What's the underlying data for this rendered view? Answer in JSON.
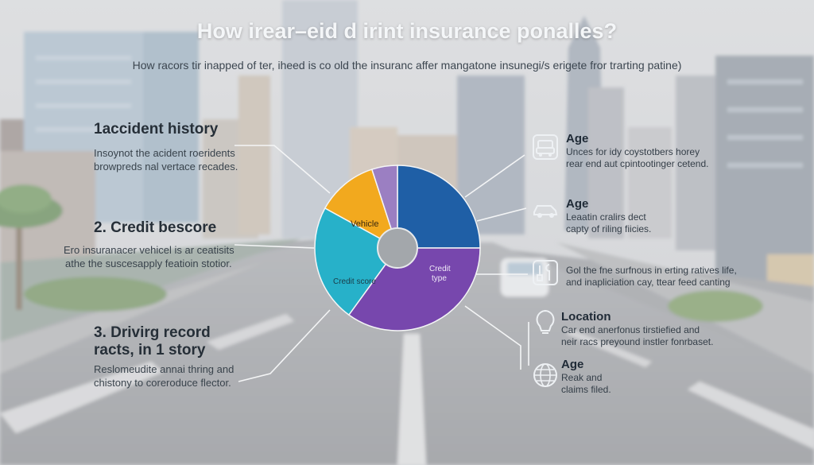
{
  "title": "How irear–eid d irint insurance ponalles?",
  "subtitle": "How racors tir inapped of ter, iheed is co old the insuranc affer mangatone insunegi/s erigete fror trarting patine)",
  "left_factors": [
    {
      "heading": "1accident history",
      "lines": [
        "Insoynot the acident roeridents",
        "browpreds nal vertace recades."
      ]
    },
    {
      "heading": "2. Credit bescore",
      "lines": [
        "Ero insuranacer vehicel is ar ceatisits",
        "athe the suscesapply featioin stotior."
      ]
    },
    {
      "heading": "3. Drivirg record\nracts, in 1 story",
      "lines": [
        "Reslomeudite annai thring and",
        "chistony to coreroduce flector."
      ]
    }
  ],
  "right_factors": [
    {
      "icon": "car-icon",
      "heading": "Age",
      "lines": [
        "Unces for idy coystotbers horey",
        "rear end aut cpintootinger cetend."
      ]
    },
    {
      "icon": "car-side-icon",
      "heading": "Age",
      "lines": [
        "Leaatin cralirs dect",
        "capty of riling fiicies."
      ]
    },
    {
      "icon": "tools-icon",
      "heading": "",
      "lines": [
        "Gol the fne surfnous in erting ratives life,",
        "and inapliciation cay, ttear feed canting"
      ]
    },
    {
      "icon": "lightbulb-icon",
      "heading": "Location",
      "lines": [
        "Car end anerfonus tirstiefied and",
        "neir racs preyound instler fonrbaset."
      ]
    },
    {
      "icon": "globe-icon",
      "heading": "Age",
      "lines": [
        "Reak and",
        "claims filed."
      ]
    }
  ],
  "pie_labels": {
    "vehicle": "Vehicle",
    "credit_score": "Credit score",
    "credit_type": "Credit\ntype"
  },
  "colors": {
    "blue": "#1f5fa6",
    "purple": "#7747ad",
    "teal": "#27b1c9",
    "orange": "#f2a91e",
    "lavender": "#9b7fc2",
    "hole": "#a3a7ab"
  },
  "chart_data": {
    "type": "pie",
    "title": "",
    "donut": true,
    "series": [
      {
        "values": [
          25,
          35,
          23,
          12,
          5
        ],
        "labels": [
          "",
          "Credit type",
          "Credit score",
          "Vehicle",
          ""
        ],
        "colors": [
          "#1f5fa6",
          "#7747ad",
          "#27b1c9",
          "#f2a91e",
          "#9b7fc2"
        ]
      }
    ]
  }
}
